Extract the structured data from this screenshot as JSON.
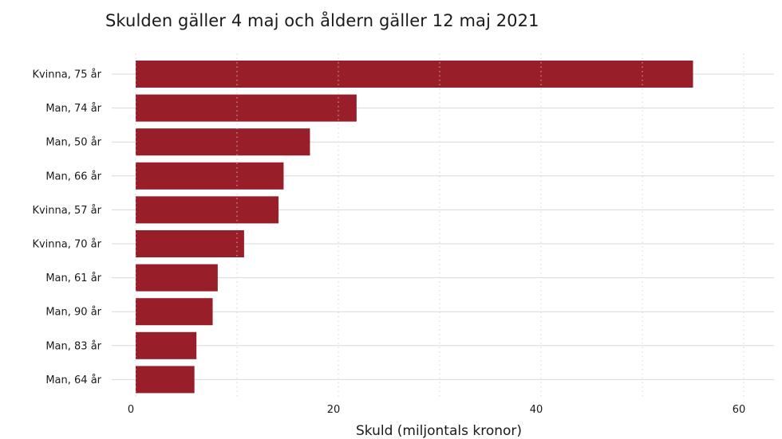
{
  "chart_data": {
    "type": "bar",
    "orientation": "horizontal",
    "title": "Skulden gäller 4 maj och åldern gäller 12 maj 2021",
    "xlabel": "Skuld (miljontals kronor)",
    "ylabel": "",
    "categories": [
      "Kvinna, 75 år",
      "Man, 74 år",
      "Man, 50 år",
      "Man, 66 år",
      "Kvinna, 57 år",
      "Kvinna, 70 år",
      "Man, 61 år",
      "Man, 90 år",
      "Man, 83 år",
      "Man, 64 år"
    ],
    "values": [
      55.0,
      21.8,
      17.2,
      14.6,
      14.1,
      10.7,
      8.1,
      7.6,
      6.0,
      5.8
    ],
    "xlim": [
      0,
      60
    ],
    "xticks": [
      0,
      20,
      40,
      60
    ],
    "xtick_labels": [
      "0",
      "20",
      "40",
      "60"
    ],
    "minor_gridlines": [
      10,
      30,
      50
    ],
    "grid": true,
    "legend": "none",
    "colors": {
      "bar": "#981e2a",
      "major_grid": "#d9d9d9",
      "minor_grid": "#bdbdbd",
      "text": "#1a1a1a"
    }
  }
}
